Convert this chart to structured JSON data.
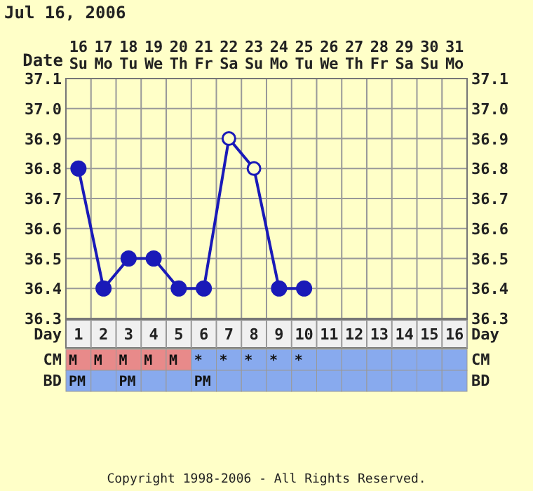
{
  "chart_data": [
    {
      "type": "line",
      "title": "Jul 16, 2006",
      "xlabel": "Date",
      "categories": [
        "16 Su",
        "17 Mo",
        "18 Tu",
        "19 We",
        "20 Th",
        "21 Fr",
        "22 Sa",
        "23 Su",
        "24 Mo",
        "25 Tu",
        "26 We",
        "27 Th",
        "28 Fr",
        "29 Sa",
        "30 Su",
        "31 Mo"
      ],
      "series": [
        {
          "color": "#1a1ab8",
          "marker": "none",
          "values": [
            36.8,
            36.4,
            36.5,
            36.5,
            36.4,
            36.4,
            36.9,
            36.8,
            36.4,
            36.4,
            null,
            null,
            null,
            null,
            null,
            null
          ]
        },
        {
          "type": "scatter",
          "color": "#1a1ab8",
          "marker": "circle",
          "values": [
            36.8,
            36.4,
            36.5,
            36.5,
            36.4,
            36.4,
            null,
            null,
            36.4,
            36.4,
            null,
            null,
            null,
            null,
            null,
            null
          ]
        },
        {
          "type": "scatter",
          "color": "#1a1ab8",
          "marker": "circle-open",
          "values": [
            null,
            null,
            null,
            null,
            null,
            null,
            36.9,
            36.8,
            null,
            null,
            null,
            null,
            null,
            null,
            null,
            null
          ]
        }
      ],
      "ylim": [
        36.3,
        37.1
      ],
      "yticks": [
        {
          "value": 36.3,
          "label": "36.3"
        },
        {
          "value": 36.4,
          "label": "36.4"
        },
        {
          "value": 36.5,
          "label": "36.5"
        },
        {
          "value": 36.6,
          "label": "36.6"
        },
        {
          "value": 36.7,
          "label": "36.7"
        },
        {
          "value": 36.8,
          "label": "36.8"
        },
        {
          "value": 36.9,
          "label": "36.9"
        },
        {
          "value": 37.0,
          "label": "37.0"
        },
        {
          "value": 37.1,
          "label": "37.1"
        }
      ],
      "y2lim": [
        36.3,
        37.1
      ],
      "y2ticks": [
        {
          "value": 36.3,
          "label": "36.3"
        },
        {
          "value": 36.4,
          "label": "36.4"
        },
        {
          "value": 36.5,
          "label": "36.5"
        },
        {
          "value": 36.6,
          "label": "36.6"
        },
        {
          "value": 36.7,
          "label": "36.7"
        },
        {
          "value": 36.8,
          "label": "36.8"
        },
        {
          "value": 36.9,
          "label": "36.9"
        },
        {
          "value": 37.0,
          "label": "37.0"
        },
        {
          "value": 37.1,
          "label": "37.1"
        }
      ],
      "x2label": "Day",
      "x2lim": [
        0.5,
        16.5
      ],
      "x2ticks": [
        1,
        2,
        3,
        4,
        5,
        6,
        7,
        8,
        9,
        10,
        11,
        12,
        13,
        14,
        15,
        16
      ],
      "grid": true
    },
    {
      "type": "other",
      "y_categories": [
        "CM",
        "BD"
      ],
      "y2_categories": [
        "CM",
        "BD"
      ],
      "cell_labels": [
        [
          "M",
          "M",
          "M",
          "M",
          "M",
          "*",
          "*",
          "*",
          "*",
          "*",
          null,
          null,
          null,
          null,
          null,
          null
        ],
        [
          "PM",
          null,
          "PM",
          null,
          null,
          "PM",
          null,
          null,
          null,
          null,
          null,
          null,
          null,
          null,
          null,
          null
        ]
      ],
      "colors": [
        "#e88a8a",
        "#e88a8a",
        "#e88a8a",
        "#e88a8a",
        "#e88a8a",
        "#88aaee",
        "#88aaee",
        "#88aaee",
        "#88aaee",
        "#88aaee",
        "#88aaee",
        "#88aaee",
        "#88aaee",
        "#88aaee",
        "#88aaee",
        "#88aaee"
      ],
      "annotations": [
        "Copyright 1998-2006 - All Rights Reserved."
      ]
    }
  ]
}
